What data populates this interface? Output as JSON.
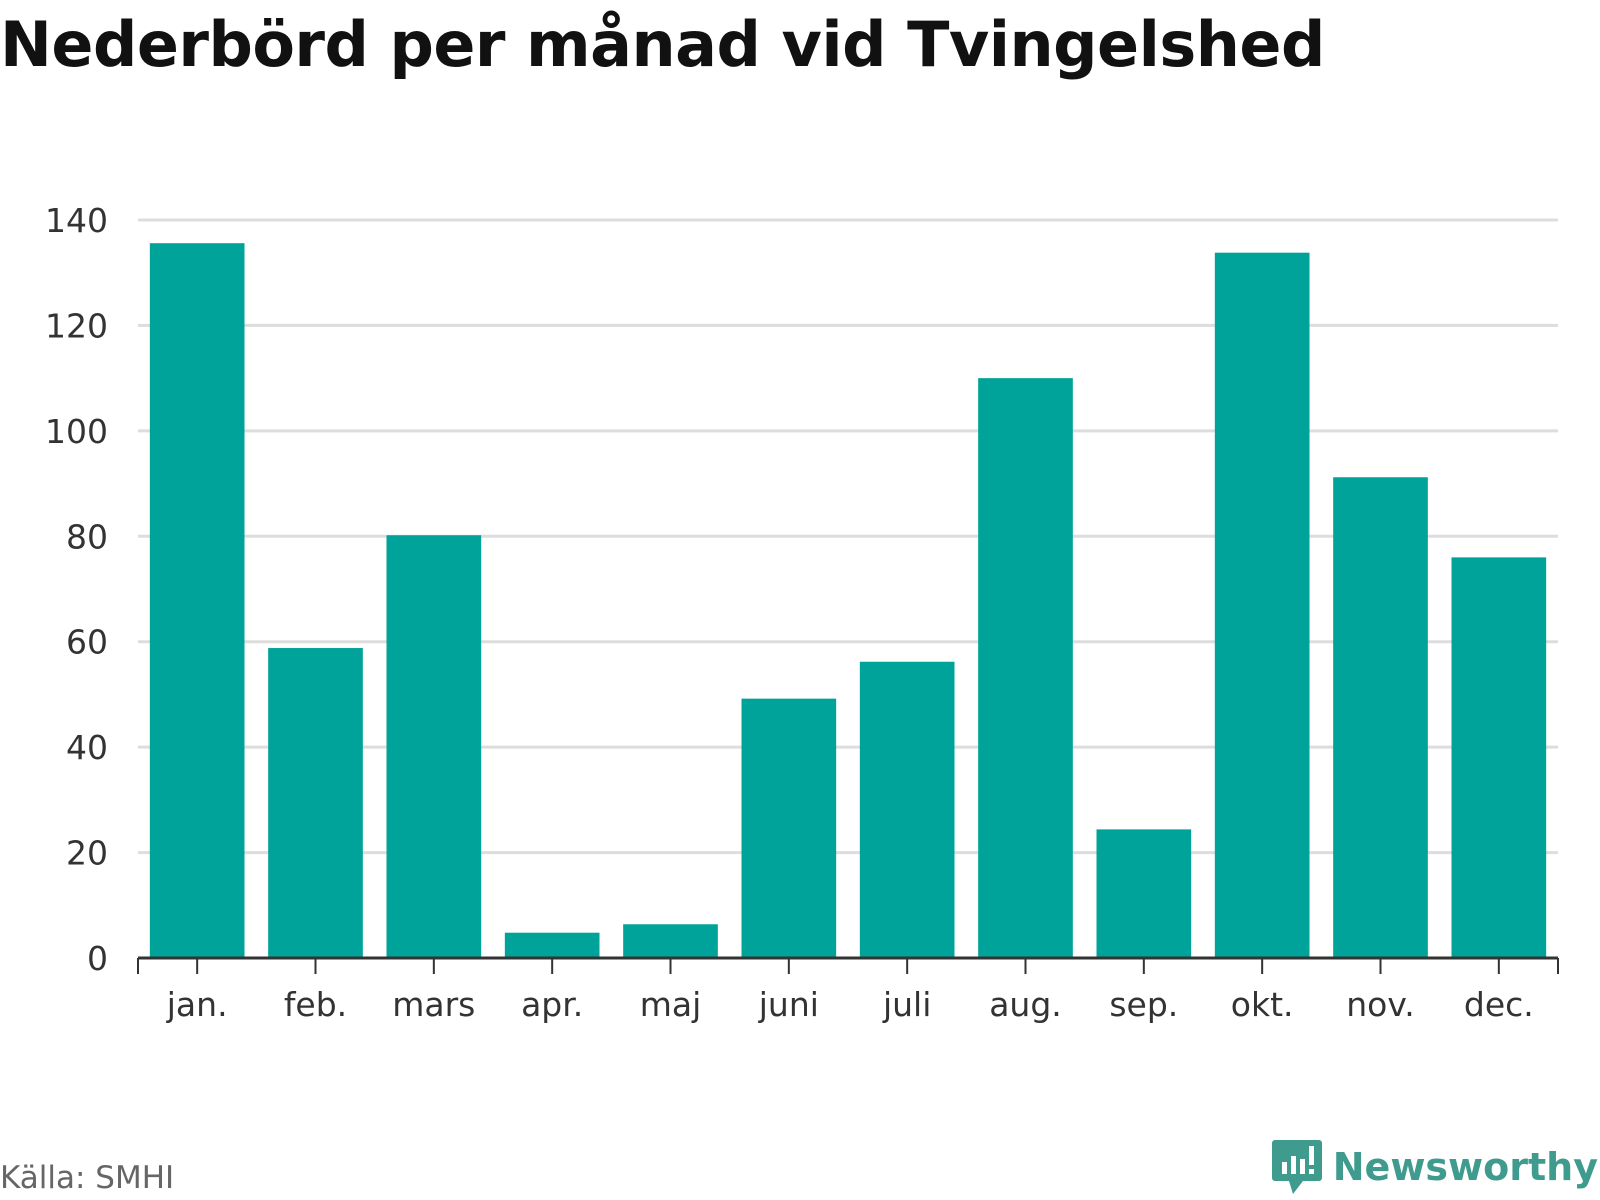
{
  "chart_data": {
    "type": "bar",
    "title": "Nederbörd per månad vid Tvingelshed",
    "categories": [
      "jan.",
      "feb.",
      "mars",
      "apr.",
      "maj",
      "juni",
      "juli",
      "aug.",
      "sep.",
      "okt.",
      "nov.",
      "dec."
    ],
    "values": [
      135.6,
      58.8,
      80.2,
      4.8,
      6.4,
      49.2,
      56.2,
      110.0,
      24.4,
      133.8,
      91.2,
      76.0
    ],
    "yticks": [
      0,
      20,
      40,
      60,
      80,
      100,
      120,
      140
    ],
    "ylim": [
      0,
      140
    ],
    "xlabel": "",
    "ylabel": "",
    "grid": true,
    "legend": "none",
    "bar_color": "#00A39A"
  },
  "footer": {
    "source": "Källa: SMHI",
    "brand": "Newsworthy",
    "brand_color": "#3E9B8D",
    "brand_icon": "newsworthy-logo-icon"
  }
}
